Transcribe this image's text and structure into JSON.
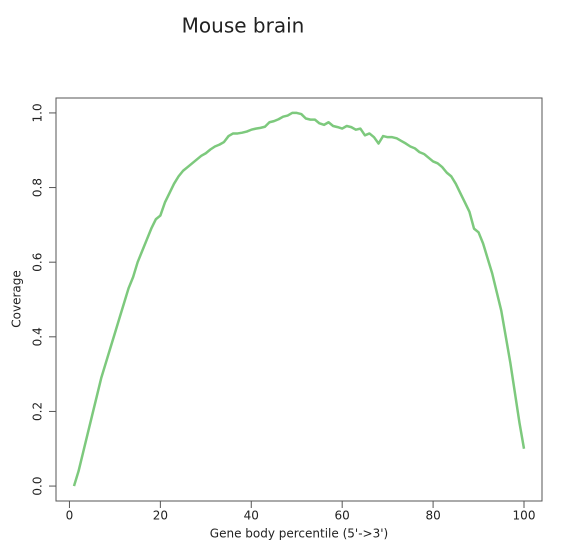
{
  "chart_data": {
    "type": "line",
    "title": "Mouse brain",
    "xlabel": "Gene body percentile (5'->3')",
    "ylabel": "Coverage",
    "x": [
      1,
      2,
      3,
      4,
      5,
      6,
      7,
      8,
      9,
      10,
      11,
      12,
      13,
      14,
      15,
      16,
      17,
      18,
      19,
      20,
      21,
      22,
      23,
      24,
      25,
      26,
      27,
      28,
      29,
      30,
      31,
      32,
      33,
      34,
      35,
      36,
      37,
      38,
      39,
      40,
      41,
      42,
      43,
      44,
      45,
      46,
      47,
      48,
      49,
      50,
      51,
      52,
      53,
      54,
      55,
      56,
      57,
      58,
      59,
      60,
      61,
      62,
      63,
      64,
      65,
      66,
      67,
      68,
      69,
      70,
      71,
      72,
      73,
      74,
      75,
      76,
      77,
      78,
      79,
      80,
      81,
      82,
      83,
      84,
      85,
      86,
      87,
      88,
      89,
      90,
      91,
      92,
      93,
      94,
      95,
      96,
      97,
      98,
      99,
      100
    ],
    "values": [
      0,
      0.04,
      0.09,
      0.14,
      0.19,
      0.24,
      0.29,
      0.33,
      0.37,
      0.41,
      0.45,
      0.49,
      0.53,
      0.56,
      0.6,
      0.63,
      0.66,
      0.69,
      0.715,
      0.725,
      0.76,
      0.785,
      0.81,
      0.83,
      0.845,
      0.855,
      0.865,
      0.875,
      0.885,
      0.892,
      0.902,
      0.91,
      0.915,
      0.922,
      0.938,
      0.945,
      0.945,
      0.947,
      0.95,
      0.955,
      0.958,
      0.96,
      0.963,
      0.975,
      0.978,
      0.983,
      0.99,
      0.993,
      1.0,
      1.0,
      0.997,
      0.985,
      0.982,
      0.982,
      0.972,
      0.968,
      0.975,
      0.965,
      0.962,
      0.958,
      0.965,
      0.962,
      0.955,
      0.958,
      0.94,
      0.945,
      0.935,
      0.918,
      0.938,
      0.935,
      0.935,
      0.932,
      0.925,
      0.918,
      0.91,
      0.905,
      0.895,
      0.89,
      0.88,
      0.87,
      0.865,
      0.855,
      0.84,
      0.83,
      0.81,
      0.785,
      0.76,
      0.735,
      0.69,
      0.68,
      0.65,
      0.61,
      0.57,
      0.52,
      0.47,
      0.4,
      0.33,
      0.25,
      0.17,
      0.1
    ],
    "color": "#7dc97d",
    "xlim": [
      -2.96,
      103.96
    ],
    "xticks": [
      0,
      20,
      40,
      60,
      80,
      100
    ],
    "ylim": [
      -0.04,
      1.04
    ],
    "yticks": [
      {
        "value": 0,
        "label": "0.0"
      },
      0.2,
      0.4,
      0.6,
      0.8,
      {
        "value": 1,
        "label": "1.0"
      }
    ]
  }
}
